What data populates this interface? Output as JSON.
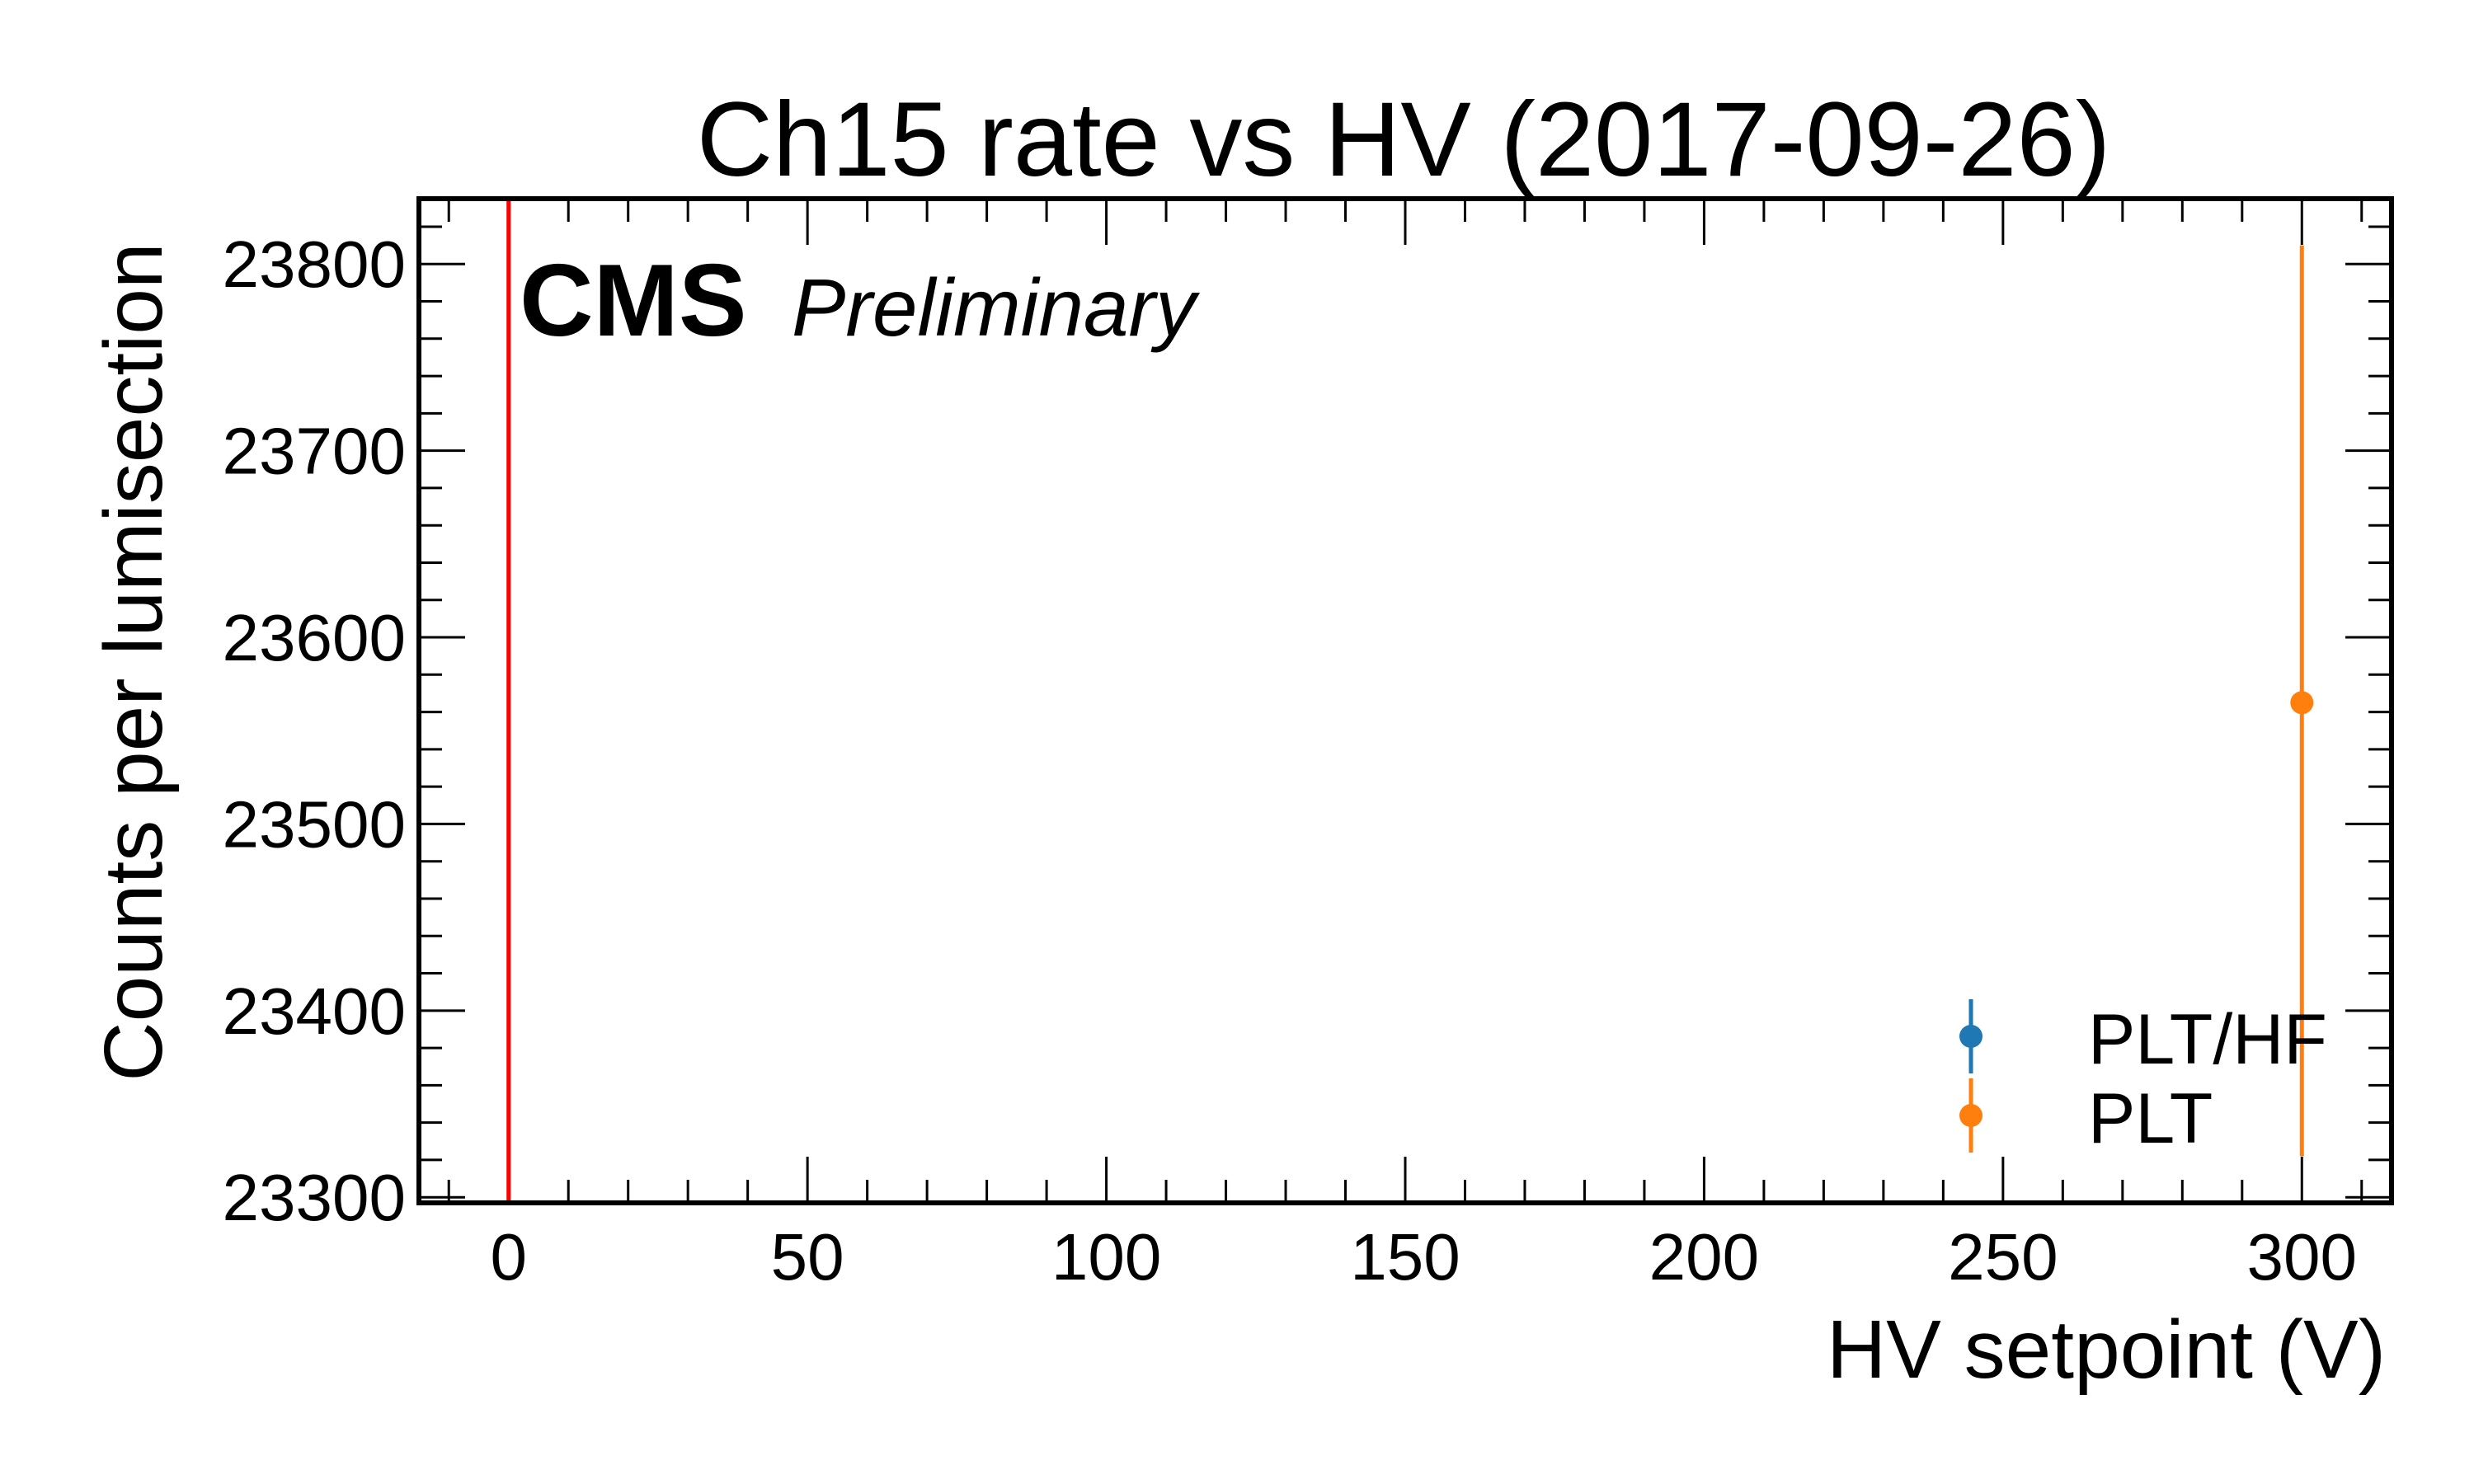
{
  "chart_data": {
    "type": "scatter",
    "title": "Ch15 rate vs HV (2017-09-26)",
    "xlabel": "HV setpoint (V)",
    "ylabel": "Counts per lumisection",
    "xlim": [
      -15,
      315
    ],
    "ylim": [
      23297,
      23835
    ],
    "x_ticks": [
      0,
      50,
      100,
      150,
      200,
      250,
      300
    ],
    "y_ticks": [
      23300,
      23400,
      23500,
      23600,
      23700,
      23800
    ],
    "x_tick_labels": [
      "0",
      "50",
      "100",
      "150",
      "200",
      "250",
      "300"
    ],
    "y_tick_labels": [
      "23300",
      "23400",
      "23500",
      "23600",
      "23700",
      "23800"
    ],
    "grid": false,
    "legend_position": "bottom-right",
    "experiment_label": "CMS",
    "experiment_sublabel": "Preliminary",
    "reference_line": {
      "x": 0,
      "color": "#ff0000"
    },
    "series": [
      {
        "name": "PLT/HF",
        "color": "#1f77b4",
        "points": []
      },
      {
        "name": "PLT",
        "color": "#ff7f0e",
        "points": [
          {
            "x": 300,
            "y": 23565,
            "yerr_low": 23322,
            "yerr_high": 23810
          }
        ]
      }
    ]
  }
}
